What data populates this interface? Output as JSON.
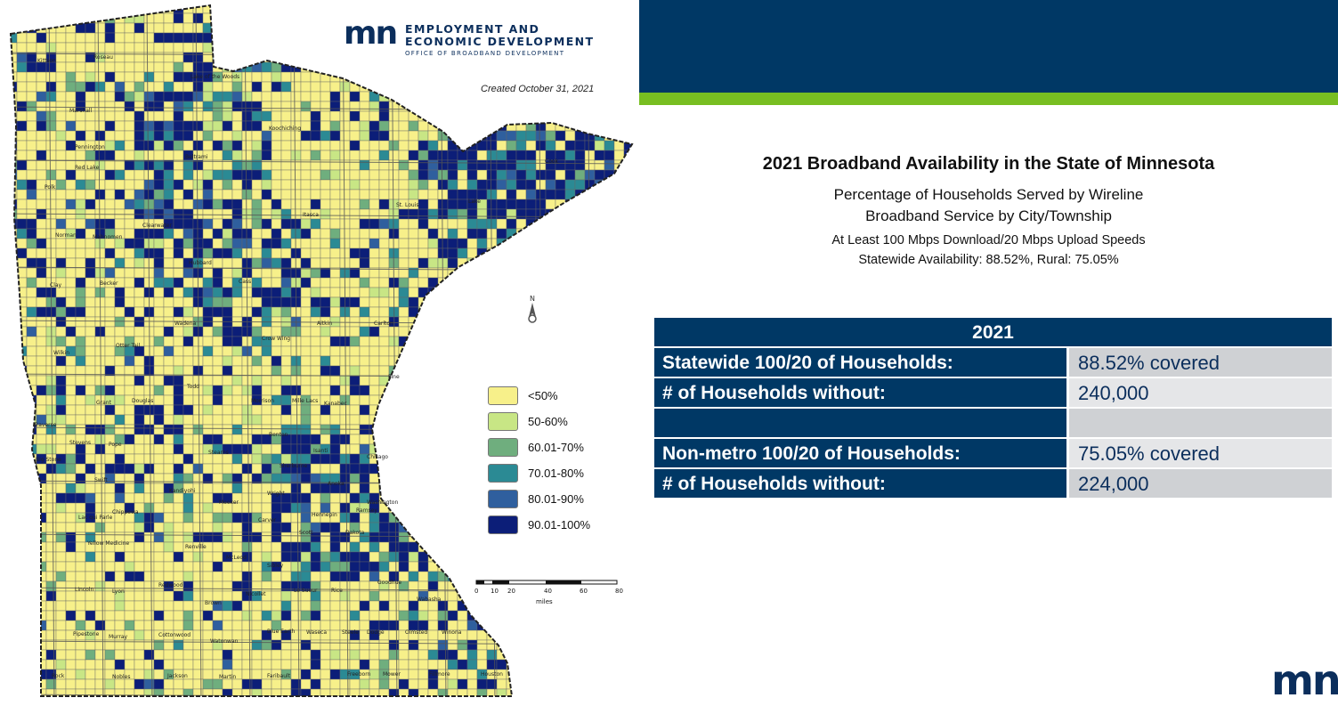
{
  "map": {
    "agency_line1": "EMPLOYMENT AND",
    "agency_line2": "ECONOMIC DEVELOPMENT",
    "agency_line3": "OFFICE OF BROADBAND DEVELOPMENT",
    "logo": "mn",
    "created": "Created October 31, 2021",
    "legend": [
      {
        "label": "<50%",
        "color": "#f7f08a"
      },
      {
        "label": "50-60%",
        "color": "#c8e685"
      },
      {
        "label": "60.01-70%",
        "color": "#6fae7e"
      },
      {
        "label": "70.01-80%",
        "color": "#2b8a94"
      },
      {
        "label": "80.01-90%",
        "color": "#2f5f9e"
      },
      {
        "label": "90.01-100%",
        "color": "#0c1e78"
      }
    ],
    "north_label": "N",
    "scale": {
      "ticks": [
        "0",
        "10",
        "20",
        "40",
        "60",
        "80"
      ],
      "unit": "miles"
    },
    "counties": [
      "Kittson",
      "Roseau",
      "Lake of the Woods",
      "Marshall",
      "Koochiching",
      "Pennington",
      "Red Lake",
      "Beltrami",
      "Cook",
      "Polk",
      "Itasca",
      "St. Louis",
      "Lake",
      "Norman",
      "Mahnomen",
      "Clearwater",
      "Hubbard",
      "Cass",
      "Clay",
      "Becker",
      "Aitkin",
      "Carlton",
      "Wadena",
      "Crow Wing",
      "Otter Tail",
      "Wilkin",
      "Todd",
      "Pine",
      "Morrison",
      "Mille Lacs",
      "Kanabec",
      "Grant",
      "Douglas",
      "Traverse",
      "Stevens",
      "Pope",
      "Stearns",
      "Benton",
      "Isanti",
      "Chisago",
      "Sherburne",
      "Anoka",
      "Washington",
      "Big Stone",
      "Swift",
      "Kandiyohi",
      "Meeker",
      "Wright",
      "Hennepin",
      "Ramsey",
      "Lac qui Parle",
      "Chippewa",
      "Carver",
      "Scott",
      "Dakota",
      "Yellow Medicine",
      "Renville",
      "McLeod",
      "Sibley",
      "Le Sueur",
      "Rice",
      "Goodhue",
      "Wabasha",
      "Lincoln",
      "Lyon",
      "Redwood",
      "Brown",
      "Nicollet",
      "Blue Earth",
      "Waseca",
      "Steele",
      "Dodge",
      "Olmsted",
      "Winona",
      "Pipestone",
      "Murray",
      "Cottonwood",
      "Watonwan",
      "Faribault",
      "Freeborn",
      "Mower",
      "Fillmore",
      "Houston",
      "Rock",
      "Nobles",
      "Jackson",
      "Martin"
    ]
  },
  "slide": {
    "title": "2021 Broadband Availability in the State of Minnesota",
    "subtitle_line1": "Percentage of Households Served by Wireline",
    "subtitle_line2": "Broadband Service by City/Township",
    "speed_line": "At Least 100 Mbps Download/20 Mbps Upload Speeds",
    "availability_line": "Statewide Availability: 88.52%, Rural: 75.05%",
    "table": {
      "header": "2021",
      "rows": [
        {
          "label": "Statewide 100/20  of Households:",
          "value": "88.52% covered"
        },
        {
          "label": "# of Households without:",
          "value": "240,000"
        },
        {
          "label": "",
          "value": ""
        },
        {
          "label": "Non-metro 100/20  of Households:",
          "value": "75.05% covered"
        },
        {
          "label": "# of Households without:",
          "value": "224,000"
        }
      ]
    },
    "logo": "mn",
    "colors": {
      "navy": "#003865",
      "green": "#78be21"
    }
  }
}
